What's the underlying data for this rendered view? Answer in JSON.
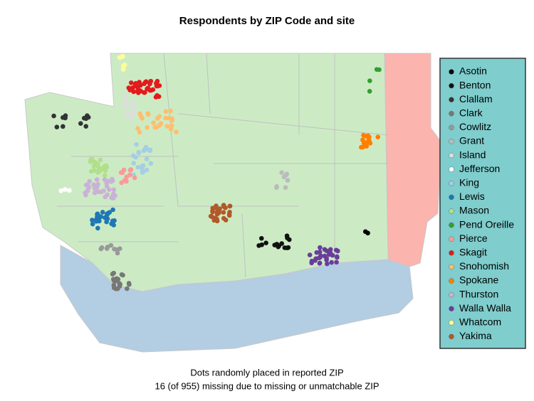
{
  "title": "Respondents by ZIP Code and site",
  "legend": [
    {
      "name": "Asotin",
      "color": "#000000"
    },
    {
      "name": "Benton",
      "color": "#111111"
    },
    {
      "name": "Clallam",
      "color": "#333333"
    },
    {
      "name": "Clark",
      "color": "#777777"
    },
    {
      "name": "Cowlitz",
      "color": "#999999"
    },
    {
      "name": "Grant",
      "color": "#bbbbbb"
    },
    {
      "name": "Island",
      "color": "#dddddd"
    },
    {
      "name": "Jefferson",
      "color": "#ffffff"
    },
    {
      "name": "King",
      "color": "#a6cee3"
    },
    {
      "name": "Lewis",
      "color": "#1f78b4"
    },
    {
      "name": "Mason",
      "color": "#b2df8a"
    },
    {
      "name": "Pend Oreille",
      "color": "#33a02c"
    },
    {
      "name": "Pierce",
      "color": "#fb9a99"
    },
    {
      "name": "Skagit",
      "color": "#e31a1c"
    },
    {
      "name": "Snohomish",
      "color": "#fdbf6f"
    },
    {
      "name": "Spokane",
      "color": "#ff7f00"
    },
    {
      "name": "Thurston",
      "color": "#cab2d6"
    },
    {
      "name": "Walla Walla",
      "color": "#6a3d9a"
    },
    {
      "name": "Whatcom",
      "color": "#ffff99"
    },
    {
      "name": "Yakima",
      "color": "#b15928"
    }
  ],
  "caption": [
    "Dots randomly placed in reported ZIP",
    "16 (of 955) missing due to missing or unmatchable ZIP"
  ]
}
